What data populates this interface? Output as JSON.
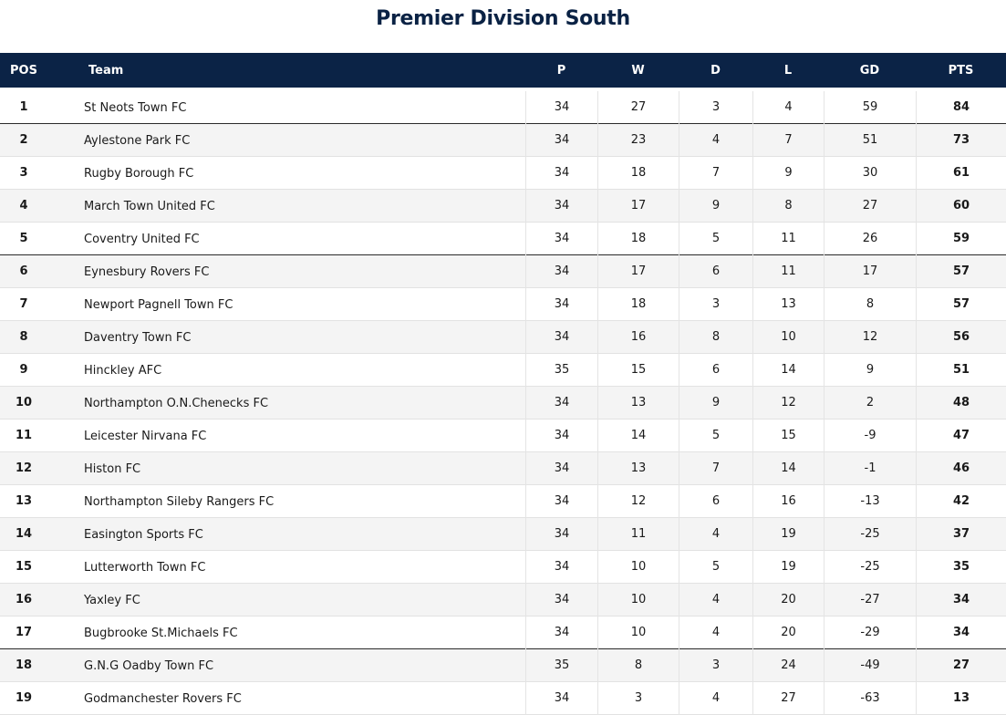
{
  "title": "Premier Division South",
  "columns": {
    "pos": "POS",
    "team": "Team",
    "p": "P",
    "w": "W",
    "d": "D",
    "l": "L",
    "gd": "GD",
    "pts": "PTS"
  },
  "rows": [
    {
      "pos": "1",
      "team": "St Neots Town FC",
      "p": "34",
      "w": "27",
      "d": "3",
      "l": "4",
      "gd": "59",
      "pts": "84"
    },
    {
      "pos": "2",
      "team": "Aylestone Park FC",
      "p": "34",
      "w": "23",
      "d": "4",
      "l": "7",
      "gd": "51",
      "pts": "73"
    },
    {
      "pos": "3",
      "team": "Rugby Borough FC",
      "p": "34",
      "w": "18",
      "d": "7",
      "l": "9",
      "gd": "30",
      "pts": "61"
    },
    {
      "pos": "4",
      "team": "March Town United FC",
      "p": "34",
      "w": "17",
      "d": "9",
      "l": "8",
      "gd": "27",
      "pts": "60"
    },
    {
      "pos": "5",
      "team": "Coventry United FC",
      "p": "34",
      "w": "18",
      "d": "5",
      "l": "11",
      "gd": "26",
      "pts": "59"
    },
    {
      "pos": "6",
      "team": "Eynesbury Rovers FC",
      "p": "34",
      "w": "17",
      "d": "6",
      "l": "11",
      "gd": "17",
      "pts": "57"
    },
    {
      "pos": "7",
      "team": "Newport Pagnell Town FC",
      "p": "34",
      "w": "18",
      "d": "3",
      "l": "13",
      "gd": "8",
      "pts": "57"
    },
    {
      "pos": "8",
      "team": "Daventry Town FC",
      "p": "34",
      "w": "16",
      "d": "8",
      "l": "10",
      "gd": "12",
      "pts": "56"
    },
    {
      "pos": "9",
      "team": "Hinckley AFC",
      "p": "35",
      "w": "15",
      "d": "6",
      "l": "14",
      "gd": "9",
      "pts": "51"
    },
    {
      "pos": "10",
      "team": "Northampton O.N.Chenecks FC",
      "p": "34",
      "w": "13",
      "d": "9",
      "l": "12",
      "gd": "2",
      "pts": "48"
    },
    {
      "pos": "11",
      "team": "Leicester Nirvana FC",
      "p": "34",
      "w": "14",
      "d": "5",
      "l": "15",
      "gd": "-9",
      "pts": "47"
    },
    {
      "pos": "12",
      "team": "Histon FC",
      "p": "34",
      "w": "13",
      "d": "7",
      "l": "14",
      "gd": "-1",
      "pts": "46"
    },
    {
      "pos": "13",
      "team": "Northampton Sileby Rangers FC",
      "p": "34",
      "w": "12",
      "d": "6",
      "l": "16",
      "gd": "-13",
      "pts": "42"
    },
    {
      "pos": "14",
      "team": "Easington Sports FC",
      "p": "34",
      "w": "11",
      "d": "4",
      "l": "19",
      "gd": "-25",
      "pts": "37"
    },
    {
      "pos": "15",
      "team": "Lutterworth Town FC",
      "p": "34",
      "w": "10",
      "d": "5",
      "l": "19",
      "gd": "-25",
      "pts": "35"
    },
    {
      "pos": "16",
      "team": "Yaxley FC",
      "p": "34",
      "w": "10",
      "d": "4",
      "l": "20",
      "gd": "-27",
      "pts": "34"
    },
    {
      "pos": "17",
      "team": "Bugbrooke St.Michaels FC",
      "p": "34",
      "w": "10",
      "d": "4",
      "l": "20",
      "gd": "-29",
      "pts": "34"
    },
    {
      "pos": "18",
      "team": "G.N.G Oadby Town FC",
      "p": "35",
      "w": "8",
      "d": "3",
      "l": "24",
      "gd": "-49",
      "pts": "27"
    },
    {
      "pos": "19",
      "team": "Godmanchester Rovers FC",
      "p": "34",
      "w": "3",
      "d": "4",
      "l": "27",
      "gd": "-63",
      "pts": "13"
    }
  ]
}
